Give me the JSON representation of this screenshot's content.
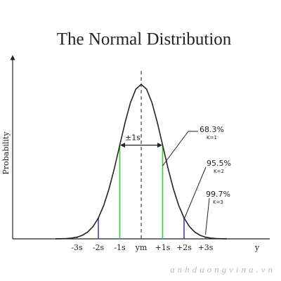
{
  "chart_data": {
    "type": "line",
    "title": "The Normal Distribution",
    "y_label": "Probability",
    "x_label": "y",
    "xlim": [
      -6,
      6
    ],
    "ylim": [
      0,
      0.45
    ],
    "xticks": [
      {
        "value": -3,
        "label": "-3s"
      },
      {
        "value": -2,
        "label": "-2s"
      },
      {
        "value": -1,
        "label": "-1s"
      },
      {
        "value": 0,
        "label": "ym"
      },
      {
        "value": 1,
        "label": "+1s"
      },
      {
        "value": 2,
        "label": "+2s"
      },
      {
        "value": 3,
        "label": "+3s"
      }
    ],
    "x": [
      -4,
      -3.75,
      -3.5,
      -3.25,
      -3,
      -2.75,
      -2.5,
      -2.25,
      -2,
      -1.75,
      -1.5,
      -1.25,
      -1,
      -0.75,
      -0.5,
      -0.25,
      0,
      0.25,
      0.5,
      0.75,
      1,
      1.25,
      1.5,
      1.75,
      2,
      2.25,
      2.5,
      2.75,
      3,
      3.25,
      3.5,
      3.75,
      4
    ],
    "series": [
      {
        "color": "#222222",
        "values": [
          0.0001,
          0.0004,
          0.0009,
          0.002,
          0.0044,
          0.0091,
          0.0175,
          0.0317,
          0.054,
          0.0863,
          0.1295,
          0.1826,
          0.242,
          0.3011,
          0.3521,
          0.3867,
          0.3989,
          0.3867,
          0.3521,
          0.3011,
          0.242,
          0.1826,
          0.1295,
          0.0863,
          0.054,
          0.0317,
          0.0175,
          0.0091,
          0.0044,
          0.002,
          0.0009,
          0.0004,
          0.0001
        ]
      }
    ],
    "reference_lines": [
      {
        "x": -3,
        "color": "#cc3333"
      },
      {
        "x": -2,
        "color": "#3344cc"
      },
      {
        "x": -1,
        "color": "#33cc33"
      },
      {
        "x": 0,
        "color": "#444444",
        "dashed": true
      },
      {
        "x": 1,
        "color": "#33cc33"
      },
      {
        "x": 2,
        "color": "#3344cc"
      },
      {
        "x": 3,
        "color": "#cc3333"
      }
    ],
    "bracket_label": "±1s",
    "annotations": [
      {
        "text": "68.3%",
        "sub": "K=1"
      },
      {
        "text": "95.5%",
        "sub": "K=2"
      },
      {
        "text": "99.7%",
        "sub": "K=3"
      }
    ],
    "watermark": "anhduongvina.vn"
  }
}
